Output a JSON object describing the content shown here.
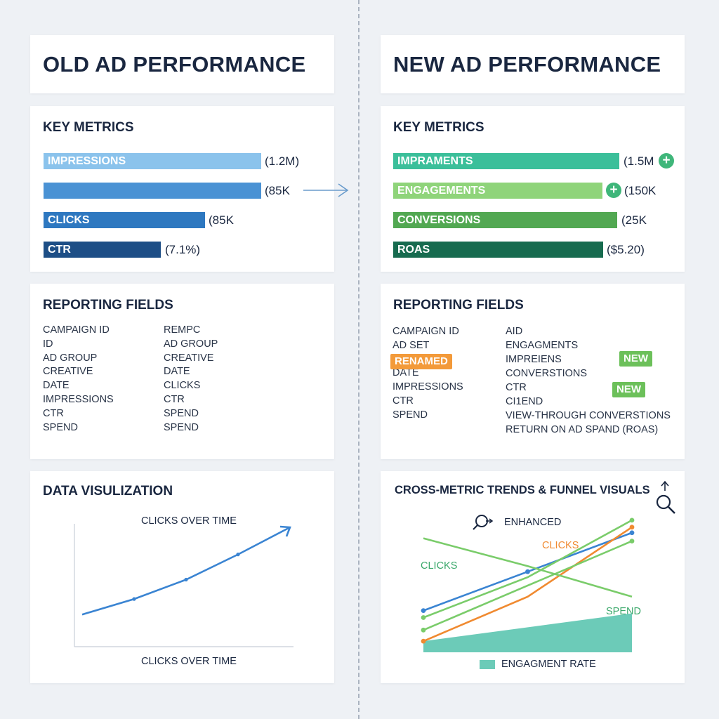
{
  "colors": {
    "old_bar_1": "#8bc3ec",
    "old_bar_2": "#4a92d4",
    "old_bar_3": "#2e78c0",
    "old_bar_4": "#1d4e86",
    "new_bar_1": "#3bbf9a",
    "new_bar_2": "#8fd47a",
    "new_bar_3": "#52a852",
    "new_bar_4": "#176b4f",
    "tag_renamed": "#f39a3a",
    "tag_new": "#6cc05a",
    "line_blue": "#3a84d2",
    "line_green": "#7acc6a",
    "line_orange": "#f08a30",
    "area_teal": "#6ccbb8",
    "arrow_blue": "#6a9ccc"
  },
  "old": {
    "title": "OLD AD PERFORMANCE",
    "metrics_heading": "KEY METRICS",
    "bars": [
      {
        "label": "IMPRESSIONS",
        "value": "(1.2M)"
      },
      {
        "label": "",
        "value": "(85K"
      },
      {
        "label": "CLICKS",
        "value": "(85K"
      },
      {
        "label": "CTR",
        "value": "(7.1%)"
      }
    ],
    "fields_heading": "REPORTING FIELDS",
    "fields_col1": [
      "CAMPAIGN ID",
      "ID",
      "AD GROUP",
      "CREATIVE",
      "DATE",
      "IMPRESSIONS",
      "CTR",
      "SPEND"
    ],
    "fields_col2": [
      "REMPC",
      "AD GROUP",
      "CREATIVE",
      "DATE",
      "CLICKS",
      "CTR",
      "SPEND",
      "SPEND"
    ],
    "viz_heading": "DATA VISULIZATION",
    "chart_title": "CLICKS OVER TIME",
    "chart_xlabel": "CLICKS OVER TIME"
  },
  "new": {
    "title": "NEW AD PERFORMANCE",
    "metrics_heading": "KEY METRICS",
    "bars": [
      {
        "label": "IMPRAMENTS",
        "value": "(1.5M"
      },
      {
        "label": "ENGAGEMENTS",
        "value": "(150K"
      },
      {
        "label": "CONVERSIONS",
        "value": "(25K"
      },
      {
        "label": "ROAS",
        "value": "($5.20)"
      }
    ],
    "fields_heading": "REPORTING FIELDS",
    "fields_col1": [
      "CAMPAIGN ID",
      "AD SET",
      "DATE",
      "DATE",
      "IMPRESSIONS",
      "CTR",
      "SPEND"
    ],
    "fields_col2": [
      "AID",
      "ENGAGMENTS",
      "IMPREIENS",
      "CONVERSTIONS",
      "CTR",
      "CI1END",
      "VIEW-THROUGH CONVERSTIONS",
      "RETURN ON AD SPAND (ROAS)"
    ],
    "tag_renamed": "RENAMED",
    "tag_new_1": "NEW",
    "tag_new_2": "NEW",
    "viz_heading": "CROSS-METRIC TRENDS & FUNNEL VISUALS",
    "enhanced_label": "ENHANCED",
    "label_clicks_orange": "CLICKS",
    "label_clicks_green": "CLICKS",
    "label_spend": "SPEND",
    "legend_label": "ENGAGMENT RATE"
  },
  "chart_data": [
    {
      "type": "line",
      "title": "CLICKS OVER TIME",
      "xlabel": "CLICKS OVER TIME",
      "ylabel": "",
      "x": [
        0,
        1,
        2,
        3,
        4
      ],
      "series": [
        {
          "values": [
            10,
            26,
            46,
            72,
            100
          ]
        }
      ],
      "grid": false
    },
    {
      "type": "line",
      "title": "CROSS-METRIC TRENDS & FUNNEL VISUALS",
      "x": [
        0,
        1,
        2
      ],
      "series": [
        {
          "name": "CLICKS",
          "color": "blue",
          "values": [
            30,
            58,
            86
          ]
        },
        {
          "name": "CLICKS",
          "color": "orange",
          "values": [
            8,
            40,
            90
          ]
        },
        {
          "color": "green-up",
          "values": [
            25,
            54,
            95
          ]
        },
        {
          "color": "green-mid",
          "values": [
            16,
            48,
            80
          ]
        },
        {
          "name": "SPEND",
          "color": "green-down",
          "values": [
            82,
            62,
            40
          ]
        },
        {
          "name": "ENGAGMENT RATE",
          "type": "area",
          "values": [
            8,
            18,
            28
          ]
        }
      ]
    }
  ]
}
